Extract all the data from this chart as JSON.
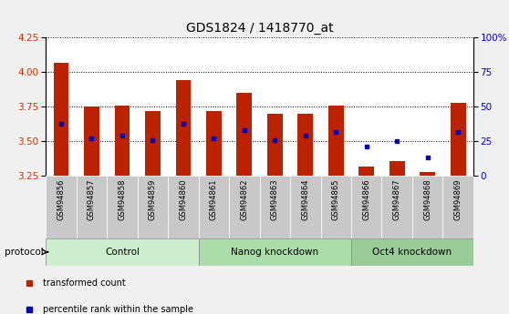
{
  "title": "GDS1824 / 1418770_at",
  "samples": [
    "GSM94856",
    "GSM94857",
    "GSM94858",
    "GSM94859",
    "GSM94860",
    "GSM94861",
    "GSM94862",
    "GSM94863",
    "GSM94864",
    "GSM94865",
    "GSM94866",
    "GSM94867",
    "GSM94868",
    "GSM94869"
  ],
  "bar_tops": [
    4.07,
    3.75,
    3.76,
    3.72,
    3.94,
    3.72,
    3.85,
    3.7,
    3.7,
    3.76,
    3.32,
    3.36,
    3.28,
    3.78
  ],
  "bar_bottom": 3.25,
  "blue_dot_values": [
    3.63,
    3.52,
    3.54,
    3.51,
    3.63,
    3.52,
    3.58,
    3.51,
    3.54,
    3.57,
    3.46,
    3.5,
    3.38,
    3.57
  ],
  "ylim": [
    3.25,
    4.25
  ],
  "yticks_left": [
    3.25,
    3.5,
    3.75,
    4.0,
    4.25
  ],
  "yticks_right_vals": [
    0,
    25,
    50,
    75,
    100
  ],
  "yticks_right_labels": [
    "0",
    "25",
    "50",
    "75",
    "100%"
  ],
  "bar_color": "#BB2200",
  "dot_color": "#0000BB",
  "plot_bg": "#FFFFFF",
  "fig_bg": "#F0F0F0",
  "grid_color": "#000000",
  "groups": [
    {
      "label": "Control",
      "start": 0,
      "end": 4,
      "color": "#CCEECC"
    },
    {
      "label": "Nanog knockdown",
      "start": 5,
      "end": 9,
      "color": "#AADDAA"
    },
    {
      "label": "Oct4 knockdown",
      "start": 10,
      "end": 13,
      "color": "#99CC99"
    }
  ],
  "protocol_label": "protocol",
  "legend_items": [
    {
      "label": "transformed count",
      "color": "#BB2200"
    },
    {
      "label": "percentile rank within the sample",
      "color": "#0000BB"
    }
  ],
  "title_fontsize": 10,
  "tick_label_color_left": "#CC3300",
  "tick_label_color_right": "#0000CC",
  "xtick_bg_color": "#C8C8C8"
}
